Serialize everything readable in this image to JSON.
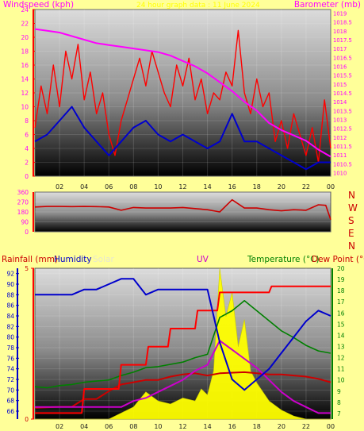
{
  "colors": {
    "background": "#ffff99",
    "wind": "#ff0000",
    "windAvg": "#0000cc",
    "barometer": "#ff00ff",
    "direction": "#cc0000",
    "rain": "#ff0000",
    "humidity": "#0000cc",
    "solar": "#ffff00",
    "uv": "#cc00cc",
    "temperature": "#008000",
    "dewpoint": "#cc0000"
  },
  "panels": {
    "wind": {
      "left_label": "Windspeed (kph)",
      "title": "24 hour graph data : 11 June 2024",
      "right_label": "Barometer (mb)"
    },
    "compass": {
      "letters": [
        "N",
        "W",
        "S",
        "E",
        "N"
      ]
    },
    "bottom": {
      "rain_label": "Rainfall (mm)",
      "humidity_label": "Humidity",
      "solar_label": "Solar",
      "uv_label": "UV",
      "temp_label": "Temperature (°C)",
      "dew_label": "Dew Point (°C)"
    }
  },
  "chart_data": [
    {
      "type": "line",
      "title": "24 hour graph data : 11 June 2024",
      "x_ticks": [
        "02",
        "04",
        "06",
        "08",
        "10",
        "12",
        "14",
        "16",
        "18",
        "20",
        "22",
        "00"
      ],
      "xlim": [
        0,
        24
      ],
      "y_left": {
        "label": "Windspeed (kph)",
        "ticks": [
          0,
          2,
          4,
          6,
          8,
          10,
          12,
          14,
          16,
          18,
          20,
          22,
          24
        ],
        "lim": [
          0,
          24
        ]
      },
      "y_right": {
        "label": "Barometer (mb)",
        "ticks": [
          1010,
          1010.5,
          1011,
          1011.5,
          1012,
          1012.5,
          1013,
          1013.5,
          1014,
          1014.5,
          1015,
          1015.5,
          1016,
          1016.5,
          1017,
          1017.5,
          1018,
          1018.5,
          1019
        ],
        "lim": [
          1009.8,
          1019.2
        ]
      },
      "series": [
        {
          "name": "Wind gust",
          "x": [
            0,
            0.5,
            1,
            1.5,
            2,
            2.5,
            3,
            3.5,
            4,
            4.5,
            5,
            5.5,
            6,
            6.5,
            7,
            7.5,
            8,
            8.5,
            9,
            9.5,
            10,
            10.5,
            11,
            11.5,
            12,
            12.5,
            13,
            13.5,
            14,
            14.5,
            15,
            15.5,
            16,
            16.5,
            17,
            17.5,
            18,
            18.5,
            19,
            19.5,
            20,
            20.5,
            21,
            21.5,
            22,
            22.5,
            23,
            23.5,
            24
          ],
          "values": [
            7,
            13,
            9,
            16,
            10,
            18,
            14,
            19,
            11,
            15,
            9,
            12,
            6,
            3,
            8,
            11,
            14,
            17,
            13,
            18,
            15,
            12,
            10,
            16,
            13,
            17,
            11,
            14,
            9,
            12,
            11,
            15,
            13,
            21,
            12,
            9,
            14,
            10,
            12,
            5,
            8,
            4,
            9,
            6,
            3,
            7,
            2,
            11,
            4
          ]
        },
        {
          "name": "Wind speed",
          "x": [
            0,
            1,
            2,
            3,
            4,
            5,
            6,
            7,
            8,
            9,
            10,
            11,
            12,
            13,
            14,
            15,
            16,
            17,
            18,
            19,
            20,
            21,
            22,
            23,
            24
          ],
          "values": [
            5,
            6,
            8,
            10,
            7,
            5,
            3,
            5,
            7,
            8,
            6,
            5,
            6,
            5,
            4,
            5,
            9,
            5,
            5,
            4,
            3,
            2,
            1,
            2,
            2
          ]
        },
        {
          "name": "Barometer",
          "x": [
            0,
            1,
            2,
            3,
            4,
            5,
            6,
            7,
            8,
            9,
            10,
            11,
            12,
            13,
            14,
            15,
            16,
            17,
            18,
            19,
            20,
            21,
            22,
            23,
            24
          ],
          "values": [
            1018.1,
            1018.0,
            1017.9,
            1017.7,
            1017.5,
            1017.3,
            1017.2,
            1017.1,
            1017.0,
            1016.9,
            1016.8,
            1016.6,
            1016.3,
            1016.0,
            1015.6,
            1015.1,
            1014.6,
            1014.0,
            1013.5,
            1012.8,
            1012.4,
            1012.1,
            1011.8,
            1011.3,
            1010.9
          ]
        }
      ]
    },
    {
      "type": "line",
      "x_ticks": [
        "02",
        "04",
        "06",
        "08",
        "10",
        "12",
        "14",
        "16",
        "18",
        "20",
        "22",
        "00"
      ],
      "xlim": [
        0,
        24
      ],
      "y_left": {
        "ticks": [
          0,
          90,
          180,
          270,
          360
        ],
        "lim": [
          0,
          360
        ]
      },
      "series": [
        {
          "name": "Wind direction",
          "x": [
            0,
            1,
            2,
            3,
            4,
            5,
            6,
            7,
            8,
            9,
            10,
            11,
            12,
            13,
            14,
            15,
            16,
            17,
            18,
            19,
            20,
            21,
            22,
            23,
            23.6,
            24
          ],
          "values": [
            225,
            230,
            230,
            228,
            230,
            228,
            225,
            195,
            220,
            215,
            215,
            215,
            220,
            210,
            200,
            180,
            290,
            215,
            215,
            200,
            190,
            200,
            195,
            245,
            240,
            110
          ]
        }
      ]
    },
    {
      "type": "line",
      "x_ticks": [
        "02",
        "04",
        "06",
        "08",
        "10",
        "12",
        "14",
        "16",
        "18",
        "20",
        "22",
        "00"
      ],
      "xlim": [
        0,
        24
      ],
      "y_rain": {
        "label": "Rainfall (mm)",
        "ticks": [
          0,
          5
        ],
        "lim": [
          0,
          5
        ]
      },
      "y_humidity": {
        "label": "Humidity",
        "ticks": [
          66,
          68,
          70,
          72,
          74,
          76,
          78,
          80,
          82,
          84,
          86,
          88,
          90,
          92
        ],
        "lim": [
          64.5,
          93
        ]
      },
      "y_temp": {
        "label": "Temperature (°C)",
        "ticks": [
          7,
          8,
          9,
          10,
          11,
          12,
          13,
          14,
          15,
          16,
          17,
          18,
          19,
          20
        ],
        "lim": [
          6.5,
          20
        ]
      },
      "series": [
        {
          "name": "Humidity",
          "x": [
            0,
            1,
            2,
            3,
            4,
            5,
            6,
            7,
            8,
            9,
            10,
            11,
            12,
            13,
            14,
            15,
            16,
            17,
            18,
            19,
            20,
            21,
            22,
            23,
            24
          ],
          "values": [
            88,
            88,
            88,
            88,
            89,
            89,
            90,
            91,
            91,
            88,
            89,
            89,
            89,
            89,
            89,
            79,
            72,
            70,
            72,
            74,
            77,
            80,
            83,
            85,
            84
          ]
        },
        {
          "name": "Temperature",
          "x": [
            0,
            1,
            2,
            3,
            4,
            5,
            6,
            7,
            8,
            9,
            10,
            11,
            12,
            13,
            14,
            15,
            16,
            17,
            18,
            19,
            20,
            21,
            22,
            23,
            24
          ],
          "values": [
            9.4,
            9.3,
            9.5,
            9.6,
            9.8,
            9.9,
            10.0,
            10.4,
            10.7,
            11.1,
            11.2,
            11.4,
            11.6,
            12.0,
            12.3,
            15.6,
            16.2,
            17.1,
            16.2,
            15.3,
            14.4,
            13.8,
            13.1,
            12.6,
            12.4
          ]
        },
        {
          "name": "Dew Point",
          "x": [
            0,
            2,
            3,
            4,
            5,
            6,
            7,
            8,
            9,
            10,
            11,
            12,
            13,
            14,
            15,
            17,
            18,
            19,
            20,
            21,
            22,
            23,
            24
          ],
          "values": [
            7.5,
            7.6,
            7.6,
            8.3,
            8.3,
            9.0,
            9.6,
            9.8,
            10.0,
            10.0,
            10.3,
            10.5,
            10.6,
            10.4,
            10.6,
            10.7,
            10.6,
            10.5,
            10.5,
            10.4,
            10.3,
            10.1,
            9.8
          ]
        },
        {
          "name": "Rainfall",
          "x": [
            0,
            3.8,
            4,
            6.8,
            7,
            9,
            9.2,
            10.8,
            11,
            13,
            13.2,
            14.8,
            15,
            19,
            19.2,
            24
          ],
          "values": [
            0.2,
            0.2,
            1.0,
            1.0,
            1.8,
            1.8,
            2.4,
            2.4,
            3.0,
            3.0,
            3.6,
            3.6,
            4.2,
            4.2,
            4.4,
            4.4
          ]
        },
        {
          "name": "UV",
          "x": [
            0,
            4,
            6,
            7,
            8,
            9,
            10,
            11,
            12,
            13,
            14,
            15,
            16,
            17,
            18,
            19,
            20,
            21,
            22,
            23,
            24
          ],
          "values": [
            0.4,
            0.4,
            0.4,
            0.4,
            0.6,
            0.7,
            0.9,
            1.1,
            1.3,
            1.6,
            1.8,
            2.6,
            2.3,
            2.0,
            1.7,
            1.3,
            0.9,
            0.6,
            0.4,
            0.2,
            0.2
          ]
        },
        {
          "name": "Solar",
          "x": [
            0,
            6,
            7,
            8,
            9,
            10,
            11,
            12,
            13,
            13.5,
            14,
            14.5,
            15,
            15.5,
            16,
            16.5,
            17,
            17.5,
            18,
            19,
            20,
            21,
            22,
            24
          ],
          "values": [
            0,
            0,
            0.2,
            0.4,
            0.9,
            0.6,
            0.5,
            0.7,
            0.6,
            1.0,
            0.8,
            1.6,
            5.0,
            3.4,
            4.2,
            2.4,
            3.3,
            1.6,
            1.2,
            0.6,
            0.3,
            0.1,
            0,
            0
          ]
        }
      ]
    }
  ]
}
